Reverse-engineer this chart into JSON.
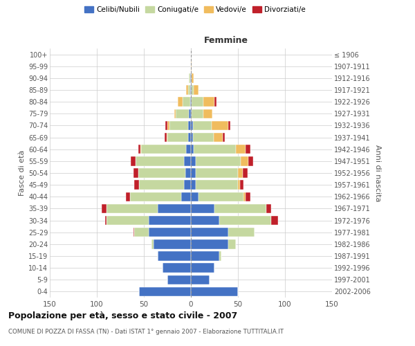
{
  "age_groups": [
    "0-4",
    "5-9",
    "10-14",
    "15-19",
    "20-24",
    "25-29",
    "30-34",
    "35-39",
    "40-44",
    "45-49",
    "50-54",
    "55-59",
    "60-64",
    "65-69",
    "70-74",
    "75-79",
    "80-84",
    "85-89",
    "90-94",
    "95-99",
    "100+"
  ],
  "birth_years": [
    "2002-2006",
    "1997-2001",
    "1992-1996",
    "1987-1991",
    "1982-1986",
    "1977-1981",
    "1972-1976",
    "1967-1971",
    "1962-1966",
    "1957-1961",
    "1952-1956",
    "1947-1951",
    "1942-1946",
    "1937-1941",
    "1932-1936",
    "1927-1931",
    "1922-1926",
    "1917-1921",
    "1912-1916",
    "1907-1911",
    "≤ 1906"
  ],
  "male": {
    "celibi": [
      55,
      25,
      30,
      35,
      40,
      45,
      45,
      35,
      10,
      7,
      6,
      7,
      5,
      3,
      3,
      2,
      1,
      1,
      1,
      0,
      0
    ],
    "coniugati": [
      0,
      0,
      0,
      0,
      2,
      15,
      45,
      55,
      55,
      48,
      50,
      52,
      48,
      22,
      20,
      14,
      8,
      2,
      1,
      0,
      0
    ],
    "vedovi": [
      0,
      0,
      0,
      0,
      0,
      0,
      0,
      0,
      0,
      0,
      0,
      0,
      1,
      1,
      2,
      2,
      5,
      2,
      0,
      0,
      0
    ],
    "divorziati": [
      0,
      0,
      0,
      0,
      0,
      1,
      1,
      5,
      4,
      5,
      5,
      5,
      2,
      2,
      2,
      0,
      0,
      0,
      0,
      0,
      0
    ]
  },
  "female": {
    "nubili": [
      50,
      20,
      25,
      30,
      40,
      40,
      30,
      25,
      8,
      5,
      5,
      5,
      3,
      2,
      2,
      1,
      1,
      1,
      1,
      0,
      0
    ],
    "coniugate": [
      0,
      0,
      0,
      2,
      8,
      28,
      55,
      55,
      48,
      45,
      45,
      48,
      45,
      22,
      20,
      12,
      12,
      2,
      0,
      0,
      0
    ],
    "vedove": [
      0,
      0,
      0,
      0,
      0,
      0,
      0,
      0,
      2,
      2,
      5,
      8,
      10,
      10,
      18,
      10,
      12,
      5,
      2,
      1,
      0
    ],
    "divorziate": [
      0,
      0,
      0,
      0,
      0,
      0,
      8,
      5,
      5,
      4,
      5,
      5,
      5,
      2,
      2,
      0,
      2,
      0,
      0,
      0,
      0
    ]
  },
  "colors": {
    "celibi": "#4472C4",
    "coniugati": "#c5d8a0",
    "vedovi": "#f0bc5e",
    "divorziati": "#c0202a"
  },
  "xlim": 150,
  "title": "Popolazione per età, sesso e stato civile - 2007",
  "subtitle": "COMUNE DI POZZA DI FASSA (TN) - Dati ISTAT 1° gennaio 2007 - Elaborazione TUTTITALIA.IT",
  "ylabel_left": "Fasce di età",
  "ylabel_right": "Anni di nascita",
  "legend_labels": [
    "Celibi/Nubili",
    "Coniugati/e",
    "Vedovi/e",
    "Divorziati/e"
  ]
}
